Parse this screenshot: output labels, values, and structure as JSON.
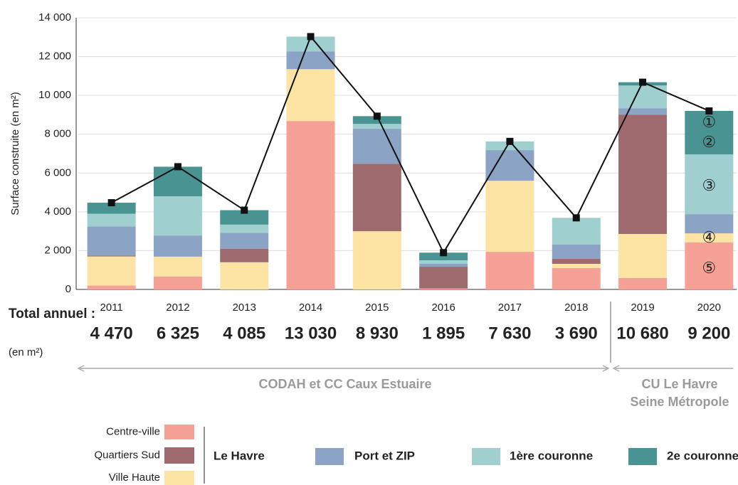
{
  "chart_data": {
    "type": "bar",
    "stacked": true,
    "y_label": "Surface construite (en m²)",
    "categories": [
      "2011",
      "2012",
      "2013",
      "2014",
      "2015",
      "2016",
      "2017",
      "2018",
      "2019",
      "2020"
    ],
    "series": [
      {
        "name": "Centre-ville",
        "color": "#f5a195",
        "values": [
          200,
          660,
          0,
          8680,
          0,
          50,
          1940,
          1100,
          590,
          2420
        ]
      },
      {
        "name": "Ville Haute",
        "color": "#fde4a5",
        "values": [
          1500,
          1030,
          1400,
          2670,
          3000,
          0,
          3660,
          220,
          2270,
          470
        ]
      },
      {
        "name": "Quartiers Sud",
        "color": "#9e6a6e",
        "values": [
          50,
          0,
          700,
          0,
          3480,
          1120,
          0,
          255,
          6150,
          0
        ]
      },
      {
        "name": "Port et ZIP",
        "color": "#8ba3c4",
        "values": [
          1500,
          1090,
          820,
          920,
          1800,
          150,
          1580,
          735,
          330,
          990
        ]
      },
      {
        "name": "1ère couronne",
        "color": "#9fcfcf",
        "values": [
          650,
          2020,
          420,
          760,
          250,
          180,
          450,
          1380,
          1170,
          3080
        ]
      },
      {
        "name": "2e couronne",
        "color": "#4a9393",
        "values": [
          570,
          1525,
          745,
          0,
          400,
          395,
          0,
          0,
          170,
          2240
        ]
      }
    ],
    "totals": {
      "type": "line",
      "color": "#111111",
      "values": [
        4470,
        6325,
        4085,
        13030,
        8930,
        1895,
        7630,
        3690,
        10680,
        9200
      ],
      "value_labels": [
        "4 470",
        "6 325",
        "4 085",
        "13 030",
        "8 930",
        "1 895",
        "7 630",
        "3 690",
        "10 680",
        "9 200"
      ]
    },
    "total_label": "Total annuel :",
    "total_unit": "(en m²)",
    "group_label": "Le Havre",
    "periods": [
      "CODAH et CC Caux Estuaire",
      "CU Le Havre",
      "Seine Métropole"
    ],
    "annotations": [
      "①",
      "②",
      "③",
      "④",
      "⑤"
    ],
    "ylim": [
      0,
      14000
    ],
    "yticks": [
      0,
      {
        "value": 2000,
        "label": "2 000"
      },
      {
        "value": 4000,
        "label": "4 000"
      },
      {
        "value": 6000,
        "label": "6 000"
      },
      {
        "value": 8000,
        "label": "8 000"
      },
      {
        "value": 10000,
        "label": "10 000"
      },
      {
        "value": 12000,
        "label": "12 000"
      },
      {
        "value": 14000,
        "label": "14 000"
      }
    ],
    "grid": true
  }
}
